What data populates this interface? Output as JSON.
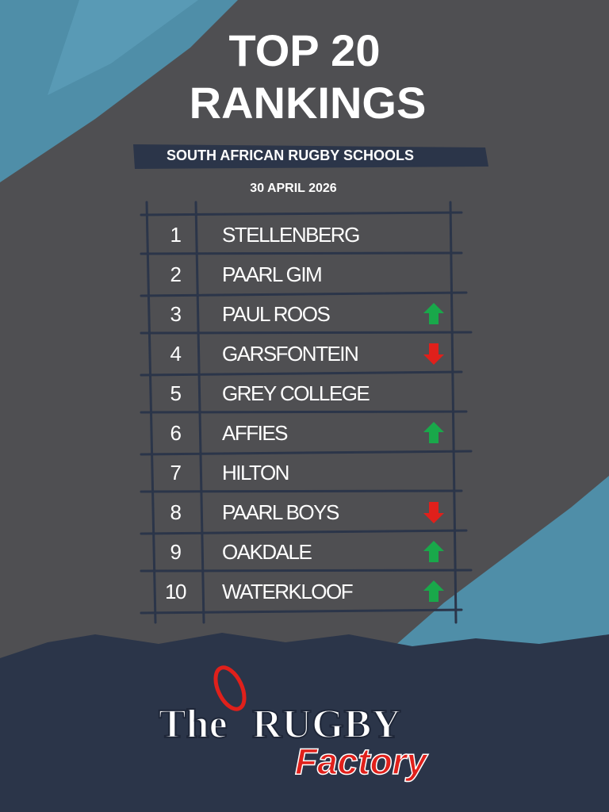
{
  "header": {
    "title_line1": "TOP 20",
    "title_line2": "RANKINGS",
    "subtitle": "SOUTH AFRICAN RUGBY SCHOOLS",
    "date": "30 APRIL 2026"
  },
  "table": {
    "rows": [
      {
        "rank": 1,
        "name": "STELLENBERG"
      },
      {
        "rank": 2,
        "name": "PAARL GIM"
      },
      {
        "rank": 3,
        "name": "PAUL ROOS",
        "movement": "up"
      },
      {
        "rank": 4,
        "name": "GARSFONTEIN",
        "movement": "down"
      },
      {
        "rank": 5,
        "name": "GREY COLLEGE"
      },
      {
        "rank": 6,
        "name": "AFFIES",
        "movement": "up"
      },
      {
        "rank": 7,
        "name": "HILTON"
      },
      {
        "rank": 8,
        "name": "PAARL BOYS",
        "movement": "down"
      },
      {
        "rank": 9,
        "name": "OAKDALE",
        "movement": "up"
      },
      {
        "rank": 10,
        "name": "WATERKLOOF",
        "movement": "up"
      }
    ]
  },
  "logo": {
    "the": "The",
    "rugby": "RUGBY",
    "factory": "Factory"
  }
}
